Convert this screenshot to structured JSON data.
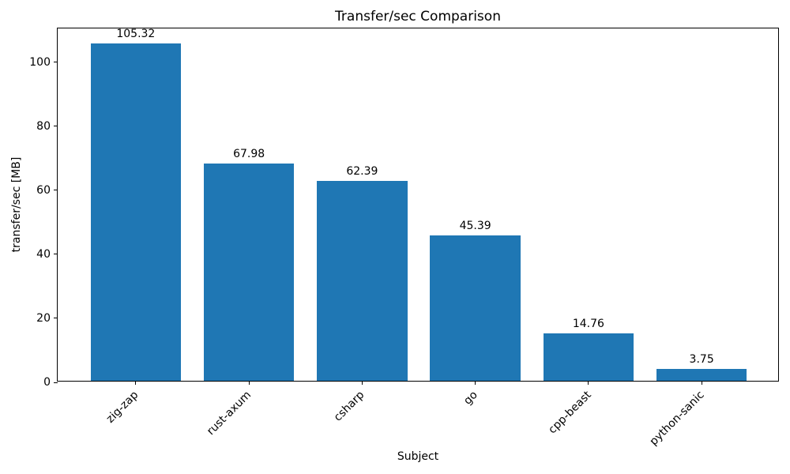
{
  "chart_data": {
    "type": "bar",
    "title": "Transfer/sec Comparison",
    "xlabel": "Subject",
    "ylabel": "transfer/sec [MB]",
    "categories": [
      "zig-zap",
      "rust-axum",
      "csharp",
      "go",
      "cpp-beast",
      "python-sanic"
    ],
    "values": [
      105.32,
      67.98,
      62.39,
      45.39,
      14.76,
      3.75
    ],
    "value_labels": [
      "105.32",
      "67.98",
      "62.39",
      "45.39",
      "14.76",
      "3.75"
    ],
    "yticks": [
      0,
      20,
      40,
      60,
      80,
      100
    ],
    "ylim": [
      0,
      110.59
    ],
    "bar_color": "#1f77b4",
    "grid": false,
    "legend_position": "none"
  }
}
